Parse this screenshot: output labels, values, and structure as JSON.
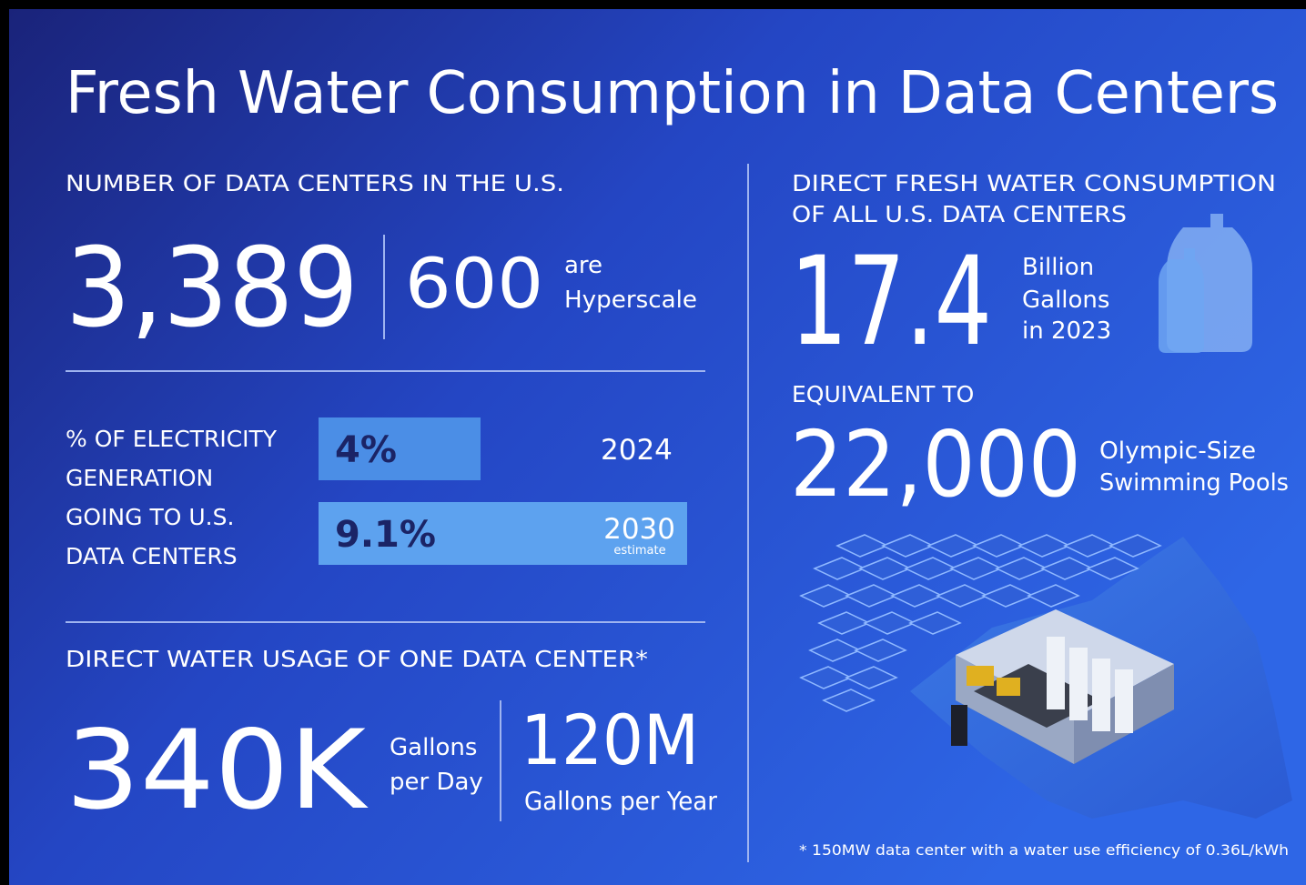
{
  "title": "Fresh Water Consumption in Data Centers",
  "data_centers": {
    "heading": "NUMBER OF DATA CENTERS IN THE U.S.",
    "total": "3,389",
    "hyperscale": "600",
    "hyperscale_text": [
      "are",
      "Hyperscale"
    ]
  },
  "electricity": {
    "heading": [
      "% OF ELECTRICITY",
      "GENERATION",
      "GOING TO U.S.",
      "DATA CENTERS"
    ],
    "values": [
      4,
      9.1
    ],
    "value_labels": [
      "4%",
      "9.1%"
    ],
    "years": [
      "2024",
      "2030"
    ],
    "note": "estimate"
  },
  "one_center": {
    "heading": "DIRECT WATER USAGE OF ONE DATA CENTER*",
    "daily": "340K",
    "daily_text": [
      "Gallons",
      "per Day"
    ],
    "yearly": "120M",
    "yearly_text": "Gallons per Year"
  },
  "all_centers": {
    "heading": [
      "DIRECT FRESH WATER CONSUMPTION",
      "OF ALL U.S. DATA CENTERS"
    ],
    "amount": "17.4",
    "amount_text": [
      "Billion",
      "Gallons",
      "in 2023"
    ]
  },
  "equivalent": {
    "heading": "EQUIVALENT TO",
    "amount": "22,000",
    "amount_text": [
      "Olympic-Size",
      "Swimming Pools"
    ]
  },
  "footnote": "* 150MW data center with a water use efficiency of 0.36L/kWh"
}
